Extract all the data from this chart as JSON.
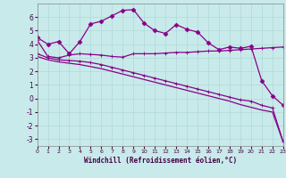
{
  "xlabel": "Windchill (Refroidissement éolien,°C)",
  "background_color": "#c8eaea",
  "grid_color": "#b0d8d8",
  "line_color": "#880088",
  "xlim": [
    0,
    23
  ],
  "ylim": [
    -3.5,
    7.0
  ],
  "xtick_labels": [
    "0",
    "1",
    "2",
    "3",
    "4",
    "5",
    "6",
    "7",
    "8",
    "9",
    "10",
    "11",
    "12",
    "13",
    "14",
    "15",
    "16",
    "17",
    "18",
    "19",
    "20",
    "21",
    "22",
    "23"
  ],
  "yticks": [
    -3,
    -2,
    -1,
    0,
    1,
    2,
    3,
    4,
    5,
    6
  ],
  "series1_x": [
    0,
    1,
    2,
    3,
    4,
    5,
    6,
    7,
    8,
    9,
    10,
    11,
    12,
    13,
    14,
    15,
    16,
    17,
    18,
    19,
    20,
    21,
    22,
    23
  ],
  "series1_y": [
    4.5,
    4.0,
    4.2,
    3.3,
    4.2,
    5.5,
    5.7,
    6.1,
    6.5,
    6.55,
    5.55,
    5.0,
    4.8,
    5.45,
    5.1,
    4.9,
    4.1,
    3.6,
    3.8,
    3.7,
    3.85,
    1.3,
    0.2,
    -0.5
  ],
  "series2_x": [
    0,
    1,
    2,
    3,
    4,
    5,
    6,
    7,
    8,
    9,
    10,
    11,
    12,
    13,
    14,
    15,
    16,
    17,
    18,
    19,
    20,
    21,
    22,
    23
  ],
  "series2_y": [
    4.3,
    3.1,
    3.0,
    3.2,
    3.3,
    3.25,
    3.2,
    3.1,
    3.05,
    3.3,
    3.3,
    3.3,
    3.35,
    3.4,
    3.4,
    3.45,
    3.5,
    3.5,
    3.55,
    3.6,
    3.65,
    3.7,
    3.75,
    3.8
  ],
  "series3_x": [
    0,
    1,
    2,
    3,
    4,
    5,
    6,
    7,
    8,
    9,
    10,
    11,
    12,
    13,
    14,
    15,
    16,
    17,
    18,
    19,
    20,
    21,
    22,
    23
  ],
  "series3_y": [
    3.3,
    3.0,
    2.85,
    2.8,
    2.75,
    2.65,
    2.5,
    2.3,
    2.1,
    1.9,
    1.7,
    1.5,
    1.3,
    1.1,
    0.9,
    0.7,
    0.5,
    0.3,
    0.1,
    -0.1,
    -0.2,
    -0.5,
    -0.7,
    -3.2
  ],
  "series4_x": [
    0,
    1,
    2,
    3,
    4,
    5,
    6,
    7,
    8,
    9,
    10,
    11,
    12,
    13,
    14,
    15,
    16,
    17,
    18,
    19,
    20,
    21,
    22,
    23
  ],
  "series4_y": [
    3.1,
    2.85,
    2.7,
    2.6,
    2.5,
    2.35,
    2.2,
    2.0,
    1.8,
    1.6,
    1.4,
    1.2,
    1.0,
    0.8,
    0.6,
    0.4,
    0.2,
    0.0,
    -0.2,
    -0.45,
    -0.65,
    -0.85,
    -1.0,
    -3.2
  ]
}
